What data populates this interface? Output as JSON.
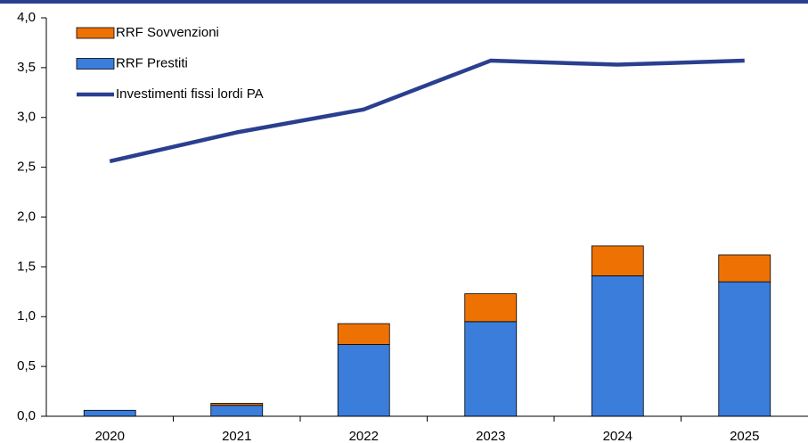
{
  "chart_data": {
    "type": "bar",
    "stacked": true,
    "categories": [
      "2020",
      "2021",
      "2022",
      "2023",
      "2024",
      "2025"
    ],
    "series": [
      {
        "name": "RRF Sovvenzioni",
        "type": "bar",
        "color": "#ee7203",
        "values": [
          0,
          0.02,
          0.21,
          0.28,
          0.3,
          0.27
        ]
      },
      {
        "name": "RRF Prestiti",
        "type": "bar",
        "color": "#3a7dda",
        "values": [
          0.06,
          0.11,
          0.72,
          0.95,
          1.41,
          1.35
        ]
      },
      {
        "name": "Investimenti fissi lordi PA",
        "type": "line",
        "color": "#2a3f8f",
        "values": [
          2.56,
          2.85,
          3.08,
          3.57,
          3.53,
          3.57
        ]
      }
    ],
    "ylim": [
      0,
      4
    ],
    "yticks": [
      {
        "value": 0,
        "label": "0,0"
      },
      {
        "value": 0.5,
        "label": "0,5"
      },
      {
        "value": 1,
        "label": "1,0"
      },
      {
        "value": 1.5,
        "label": "1,5"
      },
      {
        "value": 2,
        "label": "2,0"
      },
      {
        "value": 2.5,
        "label": "2,5"
      },
      {
        "value": 3,
        "label": "3,0"
      },
      {
        "value": 3.5,
        "label": "3,5"
      },
      {
        "value": 4,
        "label": "4,0"
      }
    ],
    "legend": "top-left"
  }
}
